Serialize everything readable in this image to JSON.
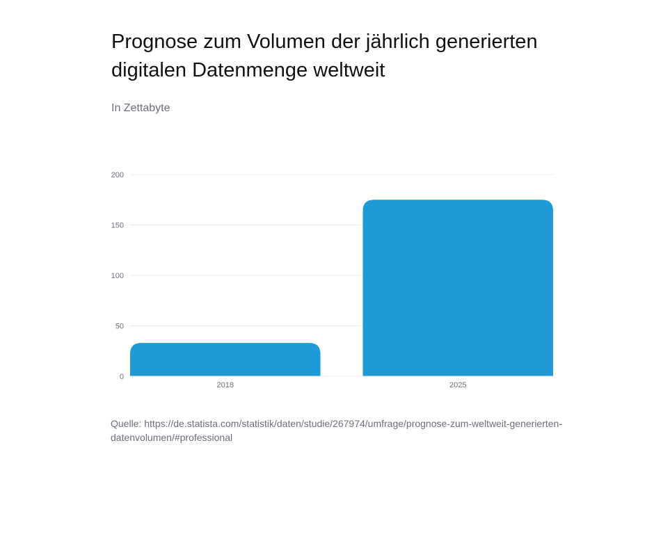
{
  "title": "Prognose zum Volumen der jährlich generierten digitalen Datenmenge weltweit",
  "subtitle": "In Zettabyte",
  "source": "Quelle: https://de.statista.com/statistik/daten/studie/267974/umfrage/prognose-zum-weltweit-generierten-datenvolumen/#professional",
  "colors": {
    "bar": "#1e9ad6",
    "grid": "#e9ebef",
    "tick": "#6d6f7a"
  },
  "chart_data": {
    "type": "bar",
    "categories": [
      "2018",
      "2025"
    ],
    "values": [
      33,
      175
    ],
    "ylim": [
      0,
      200
    ],
    "yticks": [
      0,
      50,
      100,
      150,
      200
    ],
    "grid": true,
    "xlabel": "",
    "ylabel": ""
  }
}
